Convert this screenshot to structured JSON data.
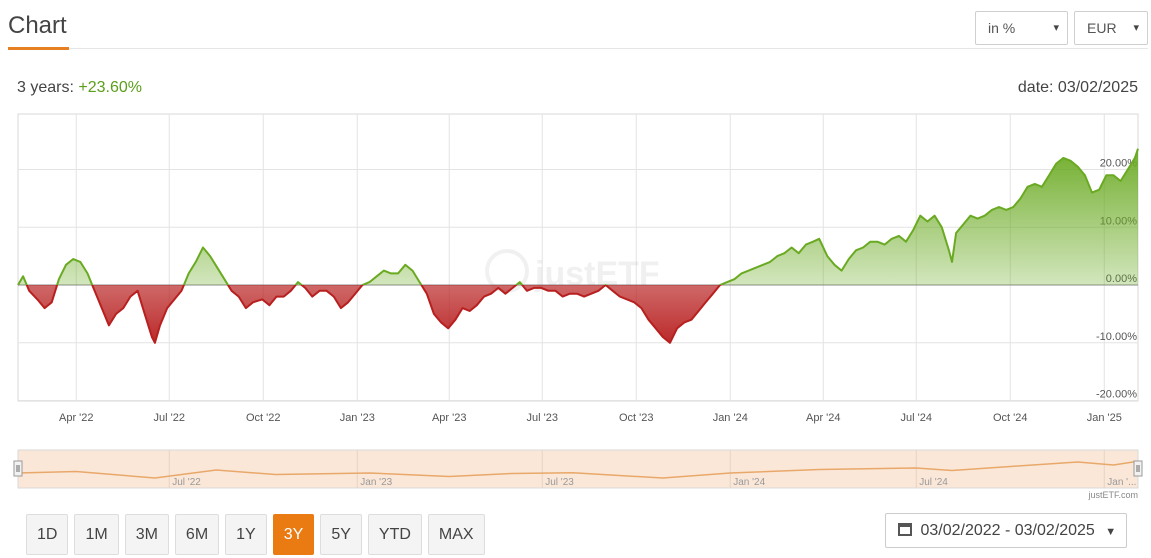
{
  "header": {
    "title": "Chart"
  },
  "controls": {
    "unit_select": "in %",
    "currency_select": "EUR",
    "caret_glyph": "▾"
  },
  "summary": {
    "period_label": "3 years:",
    "period_value": "+23.60%",
    "date_text": "date: 03/02/2025"
  },
  "range_buttons": [
    "1D",
    "1M",
    "3M",
    "6M",
    "1Y",
    "3Y",
    "5Y",
    "YTD",
    "MAX"
  ],
  "active_range": "3Y",
  "date_range_text": "03/02/2022 - 03/02/2025",
  "credit": "justETF.com",
  "watermark": "justETF",
  "colors": {
    "positive": "#6aaa22",
    "negative": "#b81f1f",
    "accent": "#ea7a12",
    "navigator_line": "#e8a86a",
    "navigator_fill": "#fbe7d8"
  },
  "chart_data": {
    "type": "area",
    "title": "",
    "xlabel": "",
    "ylabel": "",
    "ylim": [
      -20,
      20
    ],
    "xlim": [
      "2022-02-03",
      "2025-02-03"
    ],
    "y_ticks": [
      "20.00%",
      "10.00%",
      "0.00%",
      "-10.00%",
      "-20.00%"
    ],
    "x_ticks": [
      "Apr '22",
      "Jul '22",
      "Oct '22",
      "Jan '23",
      "Apr '23",
      "Jul '23",
      "Oct '23",
      "Jan '24",
      "Apr '24",
      "Jul '24",
      "Oct '24",
      "Jan '25"
    ],
    "navigator_ticks": [
      "Jul '22",
      "Jan '23",
      "Jul '23",
      "Jan '24",
      "Jul '24",
      "Jan '..."
    ],
    "grid": true,
    "baseline": 0,
    "series": [
      {
        "x": [
          "2022-02-03",
          "2022-02-08",
          "2022-02-14",
          "2022-02-22",
          "2022-03-01",
          "2022-03-08",
          "2022-03-15",
          "2022-03-22",
          "2022-03-29",
          "2022-04-05",
          "2022-04-12",
          "2022-04-19",
          "2022-04-26",
          "2022-05-03",
          "2022-05-10",
          "2022-05-17",
          "2022-05-24",
          "2022-05-31",
          "2022-06-07",
          "2022-06-14",
          "2022-06-17",
          "2022-06-22",
          "2022-06-29",
          "2022-07-06",
          "2022-07-13",
          "2022-07-20",
          "2022-07-27",
          "2022-08-03",
          "2022-08-10",
          "2022-08-17",
          "2022-08-24",
          "2022-08-31",
          "2022-09-07",
          "2022-09-14",
          "2022-09-21",
          "2022-09-30",
          "2022-10-07",
          "2022-10-14",
          "2022-10-21",
          "2022-10-28",
          "2022-11-04",
          "2022-11-11",
          "2022-11-18",
          "2022-11-25",
          "2022-12-02",
          "2022-12-09",
          "2022-12-16",
          "2022-12-23",
          "2022-12-30",
          "2023-01-06",
          "2023-01-13",
          "2023-01-20",
          "2023-01-27",
          "2023-02-03",
          "2023-02-10",
          "2023-02-17",
          "2023-02-24",
          "2023-03-03",
          "2023-03-10",
          "2023-03-17",
          "2023-03-24",
          "2023-03-31",
          "2023-04-07",
          "2023-04-14",
          "2023-04-21",
          "2023-04-28",
          "2023-05-05",
          "2023-05-12",
          "2023-05-19",
          "2023-05-26",
          "2023-06-02",
          "2023-06-09",
          "2023-06-16",
          "2023-06-23",
          "2023-06-30",
          "2023-07-07",
          "2023-07-14",
          "2023-07-21",
          "2023-07-28",
          "2023-08-04",
          "2023-08-11",
          "2023-08-18",
          "2023-08-25",
          "2023-09-01",
          "2023-09-08",
          "2023-09-15",
          "2023-09-22",
          "2023-09-29",
          "2023-10-06",
          "2023-10-13",
          "2023-10-20",
          "2023-10-27",
          "2023-11-03",
          "2023-11-10",
          "2023-11-17",
          "2023-11-24",
          "2023-12-01",
          "2023-12-08",
          "2023-12-15",
          "2023-12-22",
          "2023-12-29",
          "2024-01-05",
          "2024-01-12",
          "2024-01-19",
          "2024-01-26",
          "2024-02-02",
          "2024-02-09",
          "2024-02-16",
          "2024-02-23",
          "2024-03-01",
          "2024-03-08",
          "2024-03-15",
          "2024-03-22",
          "2024-03-28",
          "2024-04-05",
          "2024-04-12",
          "2024-04-19",
          "2024-04-26",
          "2024-05-03",
          "2024-05-10",
          "2024-05-17",
          "2024-05-24",
          "2024-05-31",
          "2024-06-07",
          "2024-06-14",
          "2024-06-21",
          "2024-06-28",
          "2024-07-05",
          "2024-07-12",
          "2024-07-19",
          "2024-07-26",
          "2024-08-02",
          "2024-08-05",
          "2024-08-09",
          "2024-08-16",
          "2024-08-23",
          "2024-08-30",
          "2024-09-06",
          "2024-09-13",
          "2024-09-20",
          "2024-09-27",
          "2024-10-04",
          "2024-10-11",
          "2024-10-18",
          "2024-10-25",
          "2024-11-01",
          "2024-11-08",
          "2024-11-15",
          "2024-11-22",
          "2024-11-29",
          "2024-12-06",
          "2024-12-13",
          "2024-12-20",
          "2024-12-27",
          "2025-01-03",
          "2025-01-10",
          "2025-01-17",
          "2025-01-24",
          "2025-01-31",
          "2025-02-03"
        ],
        "y": [
          0.0,
          1.5,
          -1.0,
          -2.5,
          -4.0,
          -3.0,
          1.0,
          3.5,
          4.5,
          4.0,
          2.0,
          -1.0,
          -4.0,
          -7.0,
          -5.0,
          -4.0,
          -2.0,
          -1.0,
          -5.0,
          -9.0,
          -10.0,
          -7.0,
          -4.0,
          -2.5,
          -1.0,
          2.0,
          4.0,
          6.5,
          5.0,
          3.0,
          1.0,
          -1.0,
          -2.0,
          -4.0,
          -3.0,
          -2.5,
          -3.5,
          -2.0,
          -2.0,
          -1.0,
          0.5,
          -0.5,
          -2.0,
          -1.0,
          -1.0,
          -2.0,
          -4.0,
          -3.0,
          -1.5,
          0.0,
          0.5,
          1.5,
          2.5,
          2.0,
          2.0,
          3.5,
          2.5,
          0.5,
          -1.5,
          -5.0,
          -6.5,
          -7.5,
          -6.0,
          -4.0,
          -4.5,
          -3.5,
          -2.0,
          -1.5,
          -0.5,
          -1.5,
          -0.5,
          0.5,
          -1.0,
          -0.5,
          -0.5,
          -1.0,
          -1.0,
          -2.0,
          -1.5,
          -1.5,
          -2.0,
          -1.5,
          -1.0,
          0.0,
          -1.0,
          -2.0,
          -2.5,
          -3.0,
          -4.0,
          -6.0,
          -7.5,
          -9.0,
          -10.0,
          -7.5,
          -6.5,
          -6.0,
          -4.5,
          -3.0,
          -1.5,
          0.0,
          0.5,
          1.0,
          2.0,
          2.5,
          3.0,
          3.5,
          4.0,
          5.0,
          5.5,
          6.5,
          5.5,
          7.0,
          7.5,
          8.0,
          5.0,
          3.5,
          2.5,
          4.5,
          6.0,
          6.5,
          7.5,
          7.5,
          7.0,
          8.0,
          8.5,
          7.5,
          9.5,
          12.0,
          11.0,
          12.0,
          10.0,
          6.0,
          4.0,
          9.0,
          10.5,
          12.0,
          11.5,
          12.0,
          13.0,
          13.5,
          13.0,
          13.5,
          15.0,
          17.0,
          17.5,
          17.0,
          19.0,
          21.0,
          22.0,
          21.5,
          20.5,
          19.0,
          16.0,
          16.5,
          19.0,
          19.0,
          18.0,
          20.0,
          22.0,
          23.6
        ]
      }
    ],
    "navigator_series": {
      "x": [
        "2022-02-03",
        "2022-04-01",
        "2022-06-17",
        "2022-08-16",
        "2022-10-13",
        "2023-01-13",
        "2023-04-01",
        "2023-06-01",
        "2023-07-31",
        "2023-10-27",
        "2024-01-01",
        "2024-03-28",
        "2024-07-01",
        "2024-08-05",
        "2024-10-01",
        "2024-12-06",
        "2025-01-10",
        "2025-02-03"
      ],
      "y": [
        0.0,
        3.0,
        -10.0,
        6.0,
        -3.0,
        0.0,
        -7.0,
        -1.0,
        0.5,
        -10.0,
        0.0,
        7.0,
        10.0,
        5.0,
        13.0,
        22.0,
        16.0,
        23.6
      ]
    }
  }
}
